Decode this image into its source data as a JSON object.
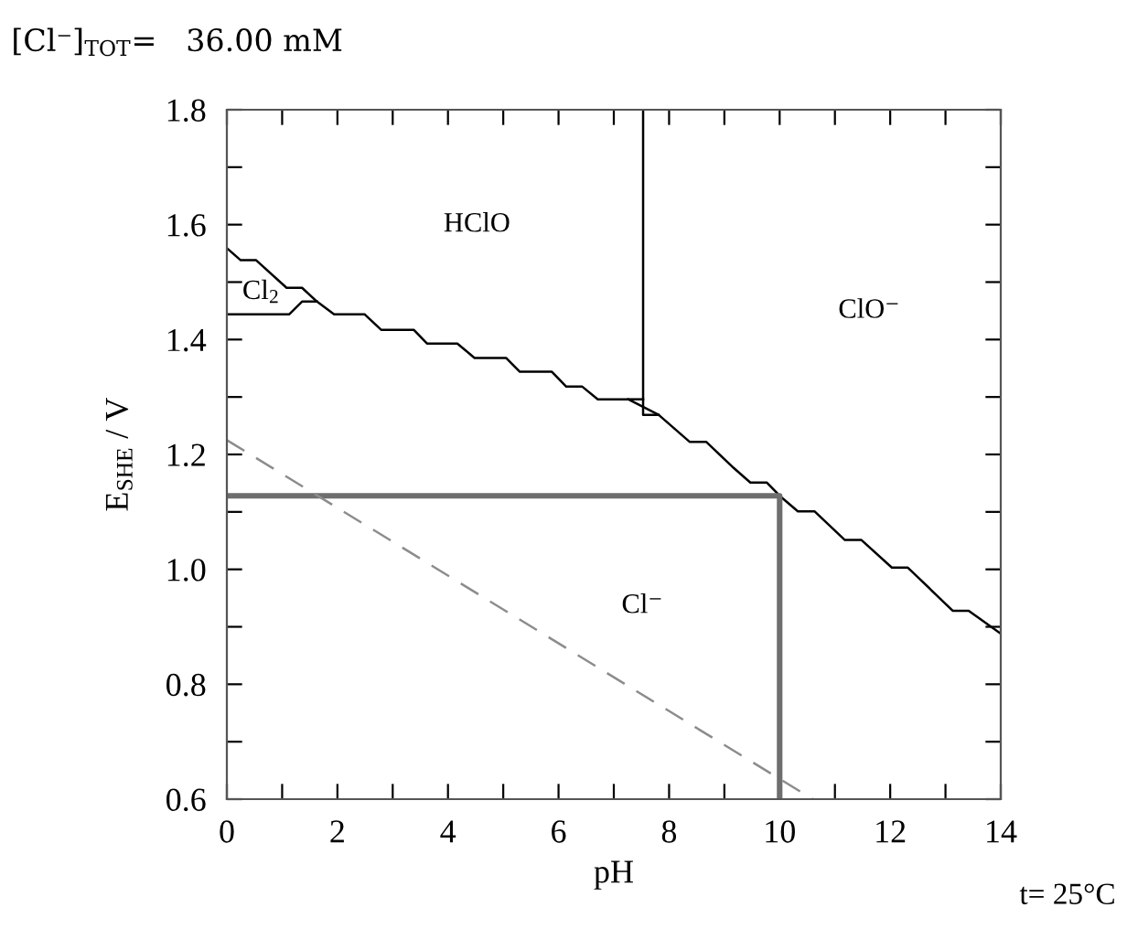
{
  "chart_data": {
    "type": "line",
    "title": "[Cl⁻]$_{TOT}$=   36.00 mM",
    "xlabel": "pH",
    "ylabel": "E$_{SHE}$ / V",
    "xlim": [
      0,
      14
    ],
    "ylim": [
      0.6,
      1.8
    ],
    "xticks": [
      0,
      {
        "value": 1,
        "label": null
      },
      2,
      {
        "value": 3,
        "label": null
      },
      4,
      {
        "value": 5,
        "label": null
      },
      6,
      {
        "value": 7,
        "label": null
      },
      8,
      {
        "value": 9,
        "label": null
      },
      10,
      {
        "value": 11,
        "label": null
      },
      12,
      {
        "value": 13,
        "label": null
      },
      14
    ],
    "yticks": [
      0.6,
      {
        "value": 0.7,
        "label": null
      },
      0.8,
      {
        "value": 0.9,
        "label": null
      },
      {
        "value": 1.0,
        "label": "1.0"
      },
      {
        "value": 1.1,
        "label": null
      },
      1.2,
      {
        "value": 1.3,
        "label": null
      },
      1.4,
      {
        "value": 1.5,
        "label": null
      },
      1.6,
      {
        "value": 1.7,
        "label": null
      },
      1.8
    ],
    "grid": false,
    "legend": false,
    "marker": "none",
    "series": [
      {
        "color": "#000000",
        "x": [
          0,
          0.25,
          0.53,
          1.08,
          1.36,
          1.63,
          1.94,
          2.49,
          2.79,
          3.38,
          3.62,
          4.17,
          4.48,
          5.05,
          5.3,
          5.88,
          6.14,
          6.43,
          6.71,
          7.26,
          7.81,
          8.37,
          8.67,
          9.14,
          9.47,
          9.77,
          10.0,
          10.33,
          10.63,
          11.18,
          11.48,
          12.03,
          12.32,
          13.13,
          13.42,
          14.0
        ],
        "values": [
          1.559,
          1.538,
          1.538,
          1.49,
          1.49,
          1.466,
          1.444,
          1.444,
          1.417,
          1.417,
          1.393,
          1.393,
          1.368,
          1.368,
          1.344,
          1.344,
          1.318,
          1.318,
          1.296,
          1.296,
          1.269,
          1.222,
          1.222,
          1.179,
          1.151,
          1.151,
          1.128,
          1.101,
          1.101,
          1.051,
          1.051,
          1.003,
          1.003,
          0.928,
          0.928,
          0.888
        ]
      },
      {
        "color": "#000000",
        "x": [
          7.26,
          7.53
        ],
        "values": [
          1.296,
          1.296
        ]
      },
      {
        "color": "#000000",
        "x": [
          7.53,
          7.53,
          7.81
        ],
        "values": [
          1.8,
          1.269,
          1.269
        ]
      },
      {
        "color": "#000000",
        "x": [
          0,
          1.13,
          1.36,
          1.63
        ],
        "values": [
          1.444,
          1.444,
          1.466,
          1.466
        ]
      },
      {
        "color": "#6e6e6e",
        "x": [
          0,
          10.0,
          10.0
        ],
        "values": [
          1.128,
          1.128,
          0.6
        ]
      },
      {
        "color": "#8c8c8c",
        "line_style": "dashed",
        "x": [
          0,
          10.6
        ],
        "values": [
          1.225,
          0.6
        ]
      }
    ],
    "annotations": [
      "HClO",
      "ClO⁻",
      "Cl$_{2}$",
      "Cl⁻",
      "t= 25°C"
    ]
  }
}
